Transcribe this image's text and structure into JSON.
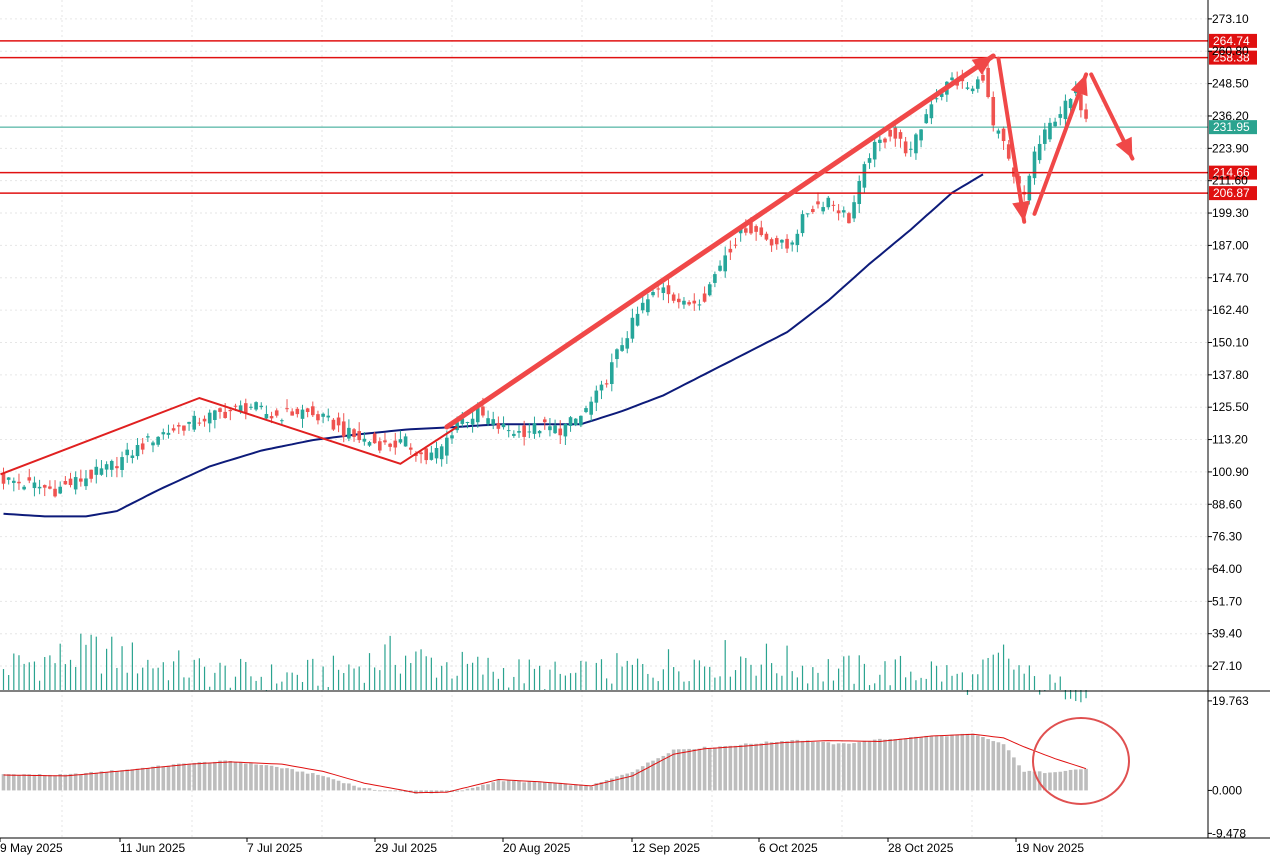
{
  "chart_data": {
    "type": "candlestick",
    "price_axis": {
      "ticks": [
        "273.10",
        "260.80",
        "248.50",
        "236.20",
        "223.90",
        "211.60",
        "199.30",
        "187.00",
        "174.70",
        "162.40",
        "150.10",
        "137.80",
        "125.50",
        "113.20",
        "100.90",
        "88.60",
        "76.30",
        "64.00",
        "51.70",
        "39.40",
        "27.10"
      ],
      "range": [
        18,
        278
      ]
    },
    "date_axis": {
      "labels": [
        "9 May 2025",
        "11 Jun 2025",
        "7 Jul 2025",
        "29 Jul 2025",
        "20 Aug 2025",
        "12 Sep 2025",
        "6 Oct 2025",
        "28 Oct 2025",
        "19 Nov 2025"
      ]
    },
    "levels": [
      {
        "value": 264.74,
        "label": "264.74",
        "color": "#e01010"
      },
      {
        "value": 258.38,
        "label": "258.38",
        "color": "#e01010"
      },
      {
        "value": 231.95,
        "label": "231.95",
        "color": "#2aa38f"
      },
      {
        "value": 214.66,
        "label": "214.66",
        "color": "#e01010"
      },
      {
        "value": 206.87,
        "label": "206.87",
        "color": "#e01010"
      }
    ],
    "price_anchors": [
      [
        0,
        98
      ],
      [
        10,
        94
      ],
      [
        20,
        102
      ],
      [
        30,
        115
      ],
      [
        40,
        122
      ],
      [
        48,
        126
      ],
      [
        52,
        122
      ],
      [
        58,
        124
      ],
      [
        63,
        120
      ],
      [
        68,
        114
      ],
      [
        74,
        111
      ],
      [
        78,
        112
      ],
      [
        82,
        106
      ],
      [
        85,
        110
      ],
      [
        88,
        120
      ],
      [
        92,
        123
      ],
      [
        96,
        118
      ],
      [
        100,
        116
      ],
      [
        104,
        118
      ],
      [
        108,
        117
      ],
      [
        112,
        122
      ],
      [
        116,
        132
      ],
      [
        120,
        150
      ],
      [
        124,
        164
      ],
      [
        128,
        172
      ],
      [
        132,
        164
      ],
      [
        136,
        168
      ],
      [
        140,
        184
      ],
      [
        144,
        194
      ],
      [
        148,
        190
      ],
      [
        152,
        186
      ],
      [
        156,
        200
      ],
      [
        160,
        205
      ],
      [
        164,
        197
      ],
      [
        168,
        222
      ],
      [
        172,
        230
      ],
      [
        176,
        222
      ],
      [
        180,
        242
      ],
      [
        184,
        250
      ],
      [
        188,
        246
      ],
      [
        190,
        252
      ],
      [
        192,
        232
      ],
      [
        194,
        225
      ],
      [
        196,
        212
      ],
      [
        198,
        206
      ],
      [
        200,
        222
      ],
      [
        204,
        236
      ],
      [
        208,
        244
      ],
      [
        210,
        237
      ]
    ],
    "ma_anchors": [
      [
        0,
        85
      ],
      [
        8,
        84
      ],
      [
        16,
        84
      ],
      [
        22,
        86
      ],
      [
        30,
        94
      ],
      [
        40,
        103
      ],
      [
        50,
        109
      ],
      [
        60,
        113
      ],
      [
        68,
        115
      ],
      [
        78,
        117
      ],
      [
        88,
        118
      ],
      [
        96,
        119
      ],
      [
        104,
        119
      ],
      [
        112,
        119
      ],
      [
        120,
        124
      ],
      [
        128,
        130
      ],
      [
        136,
        138
      ],
      [
        144,
        146
      ],
      [
        152,
        154
      ],
      [
        160,
        166
      ],
      [
        168,
        180
      ],
      [
        176,
        193
      ],
      [
        184,
        207
      ],
      [
        190,
        214
      ]
    ],
    "volume_anchors": [
      [
        0,
        28
      ],
      [
        18,
        34
      ],
      [
        28,
        30
      ],
      [
        40,
        26
      ],
      [
        52,
        24
      ],
      [
        64,
        26
      ],
      [
        76,
        33
      ],
      [
        88,
        28
      ],
      [
        100,
        26
      ],
      [
        110,
        24
      ],
      [
        120,
        27
      ],
      [
        132,
        30
      ],
      [
        144,
        32
      ],
      [
        156,
        28
      ],
      [
        168,
        26
      ],
      [
        180,
        27
      ],
      [
        188,
        22
      ],
      [
        194,
        32
      ],
      [
        200,
        22
      ],
      [
        210,
        18
      ]
    ],
    "hist_anchors": [
      [
        0,
        3.6
      ],
      [
        12,
        3.4
      ],
      [
        24,
        4.6
      ],
      [
        36,
        6.0
      ],
      [
        44,
        6.5
      ],
      [
        52,
        5.4
      ],
      [
        62,
        3.2
      ],
      [
        70,
        0.4
      ],
      [
        80,
        -0.6
      ],
      [
        88,
        -0.4
      ],
      [
        96,
        2.2
      ],
      [
        104,
        1.8
      ],
      [
        114,
        1.0
      ],
      [
        122,
        4.2
      ],
      [
        130,
        9.0
      ],
      [
        138,
        9.6
      ],
      [
        146,
        10.4
      ],
      [
        154,
        11.2
      ],
      [
        162,
        10.2
      ],
      [
        170,
        11.2
      ],
      [
        180,
        12.0
      ],
      [
        188,
        12.4
      ],
      [
        194,
        10.2
      ],
      [
        198,
        4.2
      ],
      [
        202,
        4.0
      ],
      [
        210,
        4.8
      ]
    ],
    "signal_anchors": [
      [
        0,
        3.4
      ],
      [
        12,
        3.2
      ],
      [
        24,
        4.4
      ],
      [
        36,
        5.8
      ],
      [
        44,
        6.3
      ],
      [
        54,
        5.8
      ],
      [
        62,
        4.2
      ],
      [
        70,
        1.6
      ],
      [
        80,
        -0.5
      ],
      [
        86,
        -0.4
      ],
      [
        96,
        2.4
      ],
      [
        104,
        1.9
      ],
      [
        114,
        1.0
      ],
      [
        122,
        3.2
      ],
      [
        130,
        8.0
      ],
      [
        136,
        9.2
      ],
      [
        144,
        9.8
      ],
      [
        152,
        10.6
      ],
      [
        160,
        11.0
      ],
      [
        170,
        10.8
      ],
      [
        180,
        12.0
      ],
      [
        188,
        12.4
      ],
      [
        194,
        11.6
      ],
      [
        198,
        9.6
      ],
      [
        204,
        7.0
      ],
      [
        210,
        4.8
      ]
    ],
    "bars_count": 211,
    "macd_axis": {
      "ticks": [
        "19.763",
        "0.000",
        "-9.478"
      ],
      "range": [
        -10.5,
        21.5
      ]
    }
  }
}
